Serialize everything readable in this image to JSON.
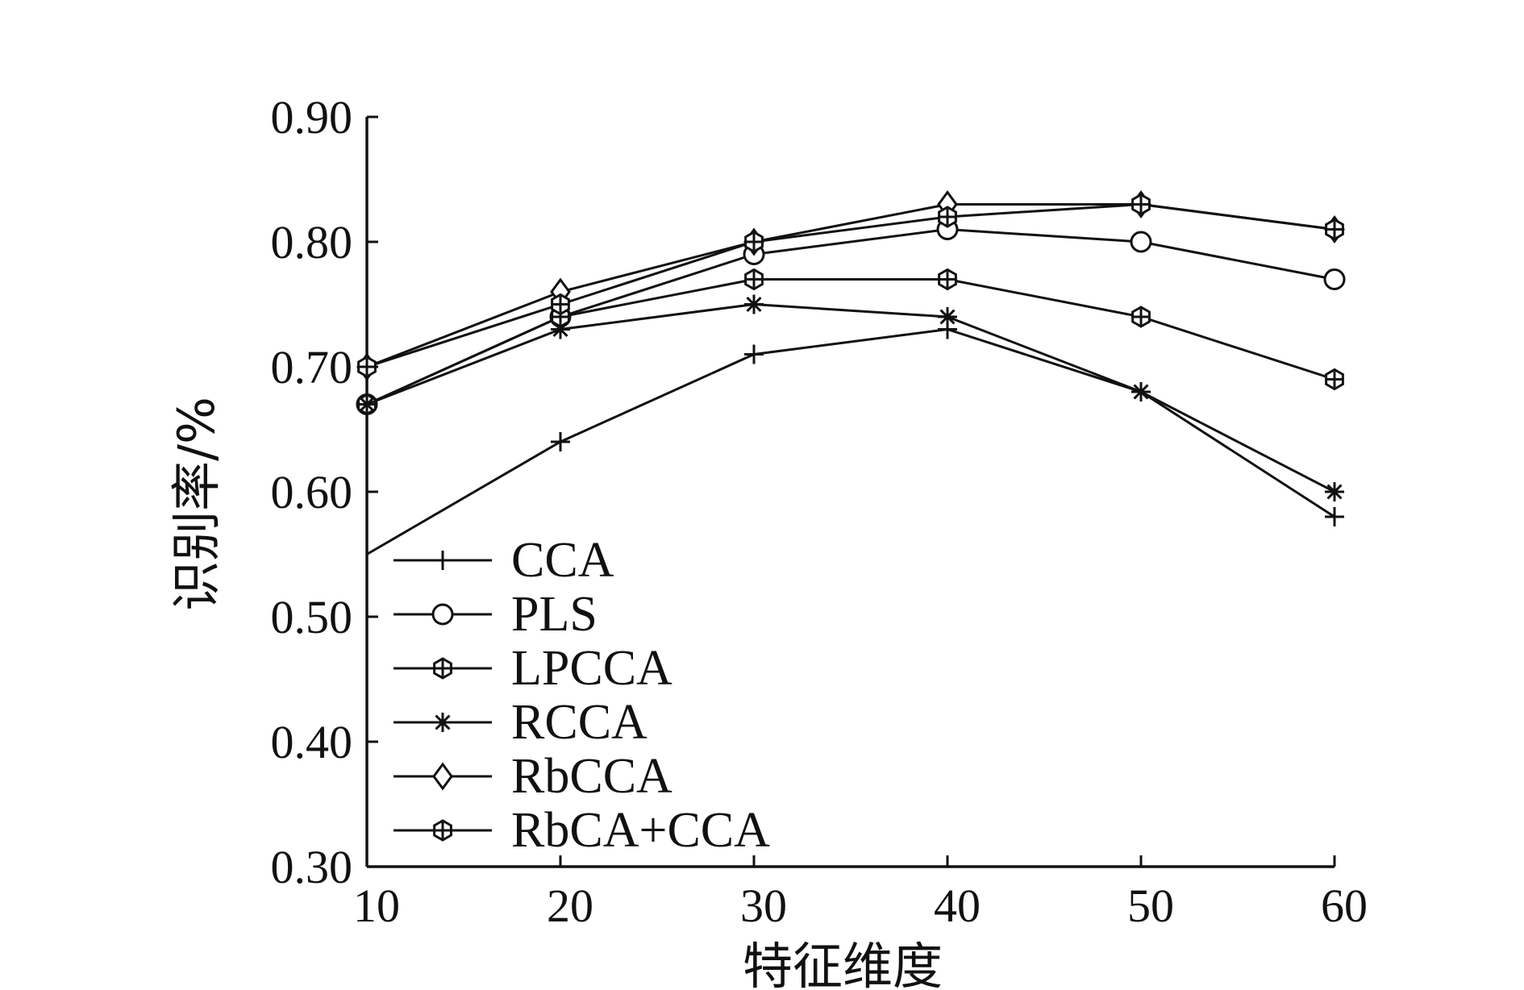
{
  "chart_data": {
    "type": "line",
    "xlabel": "特征维度",
    "ylabel": "识别率/%",
    "x": [
      10,
      20,
      30,
      40,
      50,
      60
    ],
    "x_ticks": [
      "10",
      "20",
      "30",
      "40",
      "50",
      "60"
    ],
    "y_ticks": [
      "0.30",
      "0.40",
      "0.50",
      "0.60",
      "0.70",
      "0.80",
      "0.90"
    ],
    "xlim": [
      10,
      60
    ],
    "ylim": [
      0.3,
      0.9
    ],
    "grid": false,
    "legend_position": "bottom-left",
    "series": [
      {
        "name": "CCA",
        "marker": "plus",
        "values": [
          0.55,
          0.64,
          0.71,
          0.73,
          0.68,
          0.58
        ]
      },
      {
        "name": "PLS",
        "marker": "circle",
        "values": [
          0.67,
          0.74,
          0.79,
          0.81,
          0.8,
          0.77
        ]
      },
      {
        "name": "LPCCA",
        "marker": "hexagon-plus",
        "values": [
          0.67,
          0.74,
          0.77,
          0.77,
          0.74,
          0.69
        ]
      },
      {
        "name": "RCCA",
        "marker": "asterisk",
        "values": [
          0.67,
          0.73,
          0.75,
          0.74,
          0.68,
          0.6
        ]
      },
      {
        "name": "RbCCA",
        "marker": "diamond",
        "values": [
          0.7,
          0.76,
          0.8,
          0.83,
          0.83,
          0.81
        ]
      },
      {
        "name": "RbCA+CCA",
        "marker": "hexagon-plus",
        "values": [
          0.7,
          0.75,
          0.8,
          0.82,
          0.83,
          0.81
        ]
      }
    ]
  }
}
